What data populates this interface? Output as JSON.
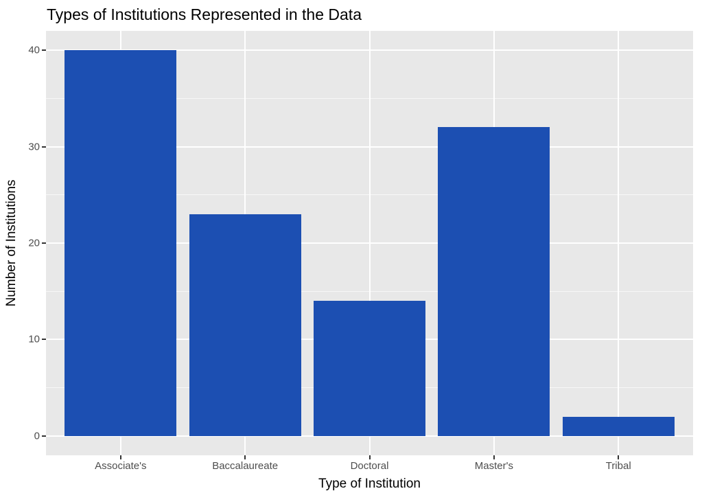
{
  "chart_data": {
    "type": "bar",
    "title": "Types of Institutions Represented in the Data",
    "xlabel": "Type of Institution",
    "ylabel": "Number of Institutions",
    "categories": [
      "Associate's",
      "Baccalaureate",
      "Doctoral",
      "Master's",
      "Tribal"
    ],
    "values": [
      40,
      23,
      14,
      32,
      2
    ],
    "ylim": [
      -2,
      42
    ],
    "y_major_ticks": [
      0,
      10,
      20,
      30,
      40
    ],
    "y_minor_ticks": [
      5,
      15,
      25,
      35
    ],
    "legend": "none",
    "grid": "white major+minor horizontal lines, white vertical line at each category center, drawn under bars",
    "bar_color": "#1C4FB2",
    "panel_background": "#E8E8E8",
    "gridline_color": "#FFFFFF",
    "tick_label_color": "#4D4D4D",
    "axis_text_color": "#000000"
  }
}
